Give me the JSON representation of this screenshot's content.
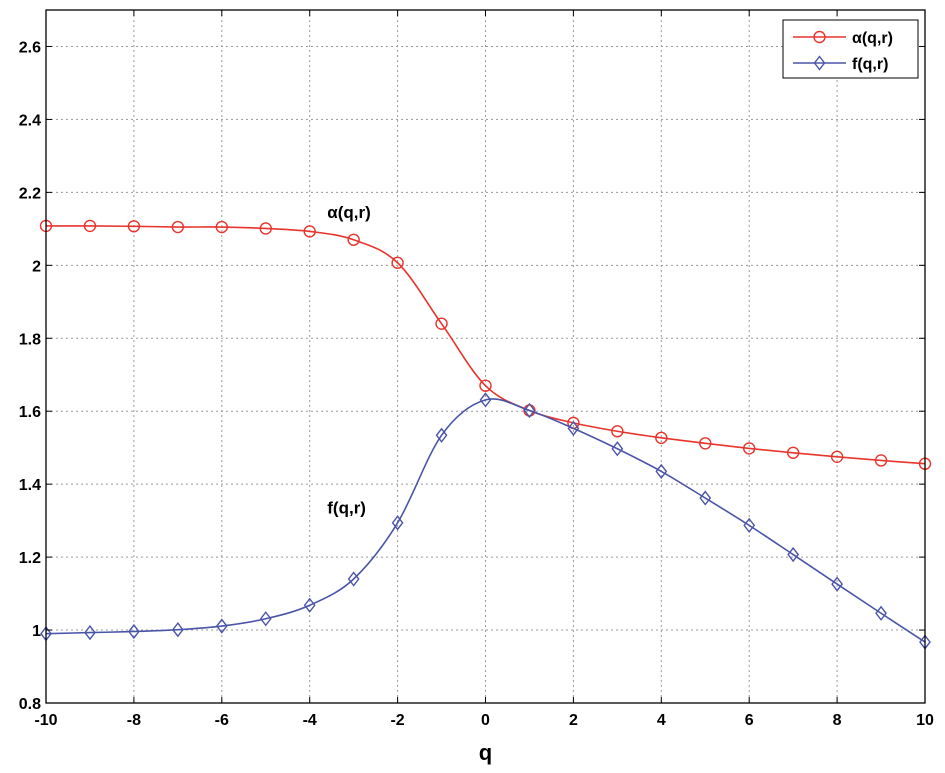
{
  "chart_data": {
    "type": "line",
    "title": "",
    "xlabel": "q",
    "ylabel": "",
    "xlim": [
      -10,
      10
    ],
    "ylim": [
      0.8,
      2.7
    ],
    "grid": true,
    "legend_position": "top-right",
    "x_ticks": [
      -10,
      -8,
      -6,
      -4,
      -2,
      0,
      2,
      4,
      6,
      8,
      10
    ],
    "x_tick_labels": [
      "-10",
      "-8",
      "-6",
      "-4",
      "-2",
      "0",
      "2",
      "4",
      "6",
      "8",
      "10"
    ],
    "y_ticks": [
      0.8,
      1.0,
      1.2,
      1.4,
      1.6,
      1.8,
      2.0,
      2.2,
      2.4,
      2.6
    ],
    "y_tick_labels": [
      "0.8",
      "1",
      "1.2",
      "1.4",
      "1.6",
      "1.8",
      "2",
      "2.2",
      "2.4",
      "2.6"
    ],
    "x": [
      -10,
      -9,
      -8,
      -7,
      -6,
      -5,
      -4,
      -3,
      -2,
      -1,
      0,
      1,
      2,
      3,
      4,
      5,
      6,
      7,
      8,
      9,
      10
    ],
    "series": [
      {
        "name": "α(q,r)",
        "color": "#e8342c",
        "marker": "circle",
        "values": [
          2.108,
          2.108,
          2.107,
          2.105,
          2.105,
          2.101,
          2.093,
          2.07,
          2.007,
          1.84,
          1.67,
          1.602,
          1.568,
          1.545,
          1.527,
          1.512,
          1.498,
          1.486,
          1.475,
          1.465,
          1.456
        ]
      },
      {
        "name": "f(q,r)",
        "color": "#4a55a8",
        "marker": "diamond",
        "values": [
          0.99,
          0.993,
          0.996,
          1.001,
          1.011,
          1.031,
          1.068,
          1.14,
          1.294,
          1.534,
          1.631,
          1.602,
          1.553,
          1.497,
          1.435,
          1.362,
          1.287,
          1.207,
          1.126,
          1.046,
          0.967
        ]
      }
    ],
    "annotations": [
      {
        "text": "α(q,r)",
        "x": -3.6,
        "y": 2.13
      },
      {
        "text": "f(q,r)",
        "x": -3.6,
        "y": 1.32
      }
    ]
  }
}
